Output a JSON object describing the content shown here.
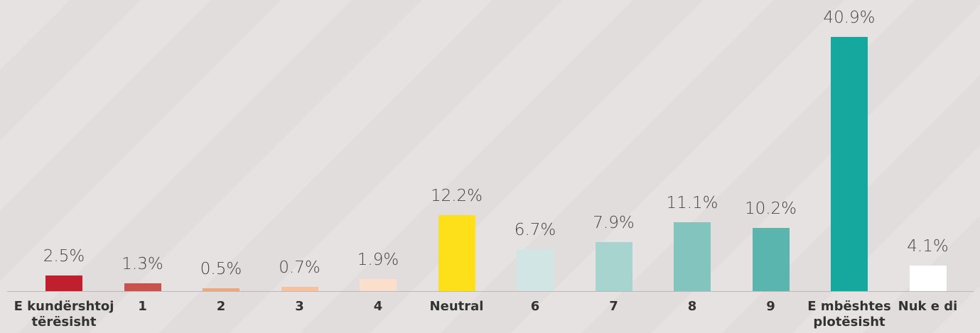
{
  "chart_data": {
    "type": "bar",
    "categories": [
      "E kundërshtoj\ntërësisht",
      "1",
      "2",
      "3",
      "4",
      "Neutral",
      "6",
      "7",
      "8",
      "9",
      "E mbështes\nplotësisht",
      "Nuk e di"
    ],
    "values": [
      2.5,
      1.3,
      0.5,
      0.7,
      1.9,
      12.2,
      6.7,
      7.9,
      11.1,
      10.2,
      40.9,
      4.1
    ],
    "value_labels": [
      "2.5%",
      "1.3%",
      "0.5%",
      "0.7%",
      "1.9%",
      "12.2%",
      "6.7%",
      "7.9%",
      "11.1%",
      "10.2%",
      "40.9%",
      "4.1%"
    ],
    "colors": [
      "#c0202e",
      "#c9524a",
      "#f0a77a",
      "#f6c19e",
      "#fbdfcc",
      "#fde01a",
      "#d1e5e5",
      "#a8d4cf",
      "#84c4bf",
      "#5ab5ae",
      "#14a89e",
      "#ffffff"
    ]
  }
}
